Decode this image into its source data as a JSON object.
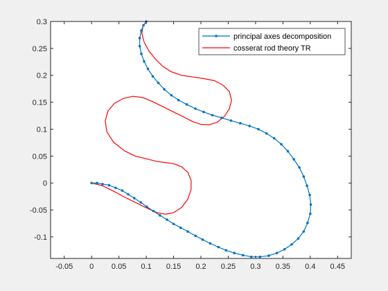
{
  "chart_data": {
    "type": "line",
    "title": "",
    "xlabel": "",
    "ylabel": "",
    "xlim": [
      -0.075,
      0.475
    ],
    "ylim": [
      -0.14,
      0.3
    ],
    "xticks": [
      -0.05,
      0,
      0.05,
      0.1,
      0.15,
      0.2,
      0.25,
      0.3,
      0.35,
      0.4,
      0.45
    ],
    "xtick_labels": [
      "-0.05",
      "0",
      "0.05",
      "0.1",
      "0.15",
      "0.2",
      "0.25",
      "0.3",
      "0.35",
      "0.4",
      "0.45"
    ],
    "yticks": [
      -0.1,
      -0.05,
      0,
      0.05,
      0.1,
      0.15,
      0.2,
      0.25,
      0.3
    ],
    "ytick_labels": [
      "-0.1",
      "-0.05",
      "0",
      "0.05",
      "0.1",
      "0.15",
      "0.2",
      "0.25",
      "0.3"
    ],
    "grid": false,
    "legend_position": "top-right",
    "series": [
      {
        "name": "principal axes decomposition",
        "color": "#0072bd",
        "marker": "dot",
        "points": [
          [
            0.0,
            0.0
          ],
          [
            0.01,
            0.0
          ],
          [
            0.02,
            -0.002
          ],
          [
            0.032,
            -0.004
          ],
          [
            0.044,
            -0.009
          ],
          [
            0.056,
            -0.014
          ],
          [
            0.067,
            -0.021
          ],
          [
            0.078,
            -0.028
          ],
          [
            0.09,
            -0.036
          ],
          [
            0.101,
            -0.044
          ],
          [
            0.113,
            -0.052
          ],
          [
            0.125,
            -0.06
          ],
          [
            0.138,
            -0.068
          ],
          [
            0.15,
            -0.076
          ],
          [
            0.163,
            -0.083
          ],
          [
            0.176,
            -0.09
          ],
          [
            0.19,
            -0.098
          ],
          [
            0.203,
            -0.105
          ],
          [
            0.217,
            -0.112
          ],
          [
            0.232,
            -0.119
          ],
          [
            0.246,
            -0.125
          ],
          [
            0.261,
            -0.13
          ],
          [
            0.277,
            -0.134
          ],
          [
            0.292,
            -0.137
          ],
          [
            0.308,
            -0.137
          ],
          [
            0.324,
            -0.135
          ],
          [
            0.339,
            -0.13
          ],
          [
            0.353,
            -0.123
          ],
          [
            0.366,
            -0.114
          ],
          [
            0.378,
            -0.103
          ],
          [
            0.388,
            -0.09
          ],
          [
            0.395,
            -0.074
          ],
          [
            0.4,
            -0.057
          ],
          [
            0.401,
            -0.04
          ],
          [
            0.399,
            -0.022
          ],
          [
            0.394,
            -0.005
          ],
          [
            0.388,
            0.012
          ],
          [
            0.38,
            0.029
          ],
          [
            0.37,
            0.044
          ],
          [
            0.359,
            0.059
          ],
          [
            0.347,
            0.072
          ],
          [
            0.334,
            0.083
          ],
          [
            0.32,
            0.092
          ],
          [
            0.305,
            0.1
          ],
          [
            0.289,
            0.106
          ],
          [
            0.272,
            0.111
          ],
          [
            0.255,
            0.116
          ],
          [
            0.238,
            0.121
          ],
          [
            0.221,
            0.126
          ],
          [
            0.205,
            0.132
          ],
          [
            0.19,
            0.138
          ],
          [
            0.174,
            0.146
          ],
          [
            0.159,
            0.154
          ],
          [
            0.146,
            0.163
          ],
          [
            0.133,
            0.174
          ],
          [
            0.122,
            0.186
          ],
          [
            0.112,
            0.198
          ],
          [
            0.103,
            0.212
          ],
          [
            0.096,
            0.226
          ],
          [
            0.091,
            0.24
          ],
          [
            0.088,
            0.254
          ],
          [
            0.088,
            0.269
          ],
          [
            0.091,
            0.283
          ],
          [
            0.095,
            0.293
          ],
          [
            0.1,
            0.3
          ]
        ]
      },
      {
        "name": "cosserat rod theory TR",
        "color": "#ff0000",
        "marker": "none",
        "points": [
          [
            0.0,
            0.0
          ],
          [
            0.02,
            -0.005
          ],
          [
            0.04,
            -0.015
          ],
          [
            0.06,
            -0.026
          ],
          [
            0.08,
            -0.036
          ],
          [
            0.1,
            -0.046
          ],
          [
            0.12,
            -0.055
          ],
          [
            0.135,
            -0.058
          ],
          [
            0.15,
            -0.055
          ],
          [
            0.165,
            -0.045
          ],
          [
            0.176,
            -0.03
          ],
          [
            0.182,
            -0.012
          ],
          [
            0.182,
            0.005
          ],
          [
            0.176,
            0.02
          ],
          [
            0.165,
            0.03
          ],
          [
            0.15,
            0.036
          ],
          [
            0.135,
            0.038
          ],
          [
            0.12,
            0.04
          ],
          [
            0.1,
            0.045
          ],
          [
            0.08,
            0.05
          ],
          [
            0.06,
            0.06
          ],
          [
            0.04,
            0.076
          ],
          [
            0.028,
            0.095
          ],
          [
            0.025,
            0.115
          ],
          [
            0.03,
            0.134
          ],
          [
            0.042,
            0.148
          ],
          [
            0.058,
            0.157
          ],
          [
            0.075,
            0.161
          ],
          [
            0.093,
            0.159
          ],
          [
            0.11,
            0.152
          ],
          [
            0.13,
            0.142
          ],
          [
            0.15,
            0.132
          ],
          [
            0.17,
            0.122
          ],
          [
            0.185,
            0.114
          ],
          [
            0.2,
            0.109
          ],
          [
            0.215,
            0.108
          ],
          [
            0.23,
            0.113
          ],
          [
            0.243,
            0.124
          ],
          [
            0.252,
            0.138
          ],
          [
            0.256,
            0.153
          ],
          [
            0.252,
            0.17
          ],
          [
            0.24,
            0.182
          ],
          [
            0.225,
            0.19
          ],
          [
            0.205,
            0.194
          ],
          [
            0.185,
            0.197
          ],
          [
            0.165,
            0.2
          ],
          [
            0.145,
            0.207
          ],
          [
            0.13,
            0.217
          ],
          [
            0.117,
            0.23
          ],
          [
            0.105,
            0.245
          ],
          [
            0.096,
            0.262
          ],
          [
            0.092,
            0.278
          ],
          [
            0.094,
            0.291
          ],
          [
            0.1,
            0.3
          ]
        ]
      }
    ]
  }
}
